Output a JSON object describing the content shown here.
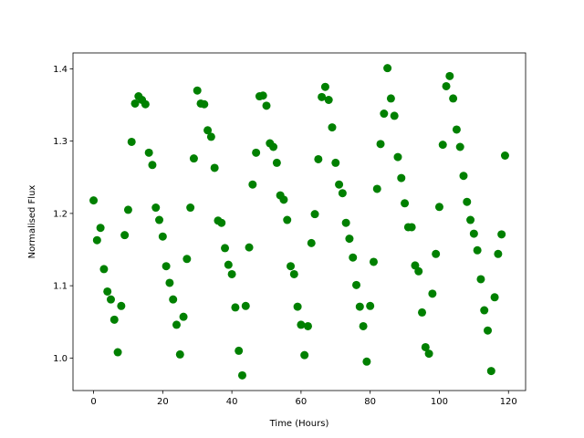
{
  "chart_data": {
    "type": "scatter",
    "xlabel": "Time (Hours)",
    "ylabel": "Normalised Flux",
    "color": "#008000",
    "x": [
      0,
      1,
      2,
      3,
      4,
      5,
      6,
      7,
      8,
      9,
      10,
      11,
      12,
      13,
      14,
      15,
      16,
      17,
      18,
      19,
      20,
      21,
      22,
      23,
      24,
      25,
      26,
      27,
      28,
      29,
      30,
      31,
      32,
      33,
      34,
      35,
      36,
      37,
      38,
      39,
      40,
      41,
      42,
      43,
      44,
      45,
      46,
      47,
      48,
      49,
      50,
      51,
      52,
      53,
      54,
      55,
      56,
      57,
      58,
      59,
      60,
      61,
      62,
      63,
      64,
      65,
      66,
      67,
      68,
      69,
      70,
      71,
      72,
      73,
      74,
      75,
      76,
      77,
      78,
      79,
      80,
      81,
      82,
      83,
      84,
      85,
      86,
      87,
      88,
      89,
      90,
      91,
      92,
      93,
      94,
      95,
      96,
      97,
      98,
      99,
      100,
      101,
      102,
      103,
      104,
      105,
      106,
      107,
      108,
      109,
      110,
      111,
      112,
      113,
      114,
      115,
      116,
      117,
      118,
      119
    ],
    "values": [
      1.218,
      1.163,
      1.18,
      1.123,
      1.092,
      1.081,
      1.053,
      1.008,
      1.072,
      1.17,
      1.205,
      1.299,
      1.352,
      1.362,
      1.357,
      1.351,
      1.284,
      1.267,
      1.208,
      1.191,
      1.168,
      1.127,
      1.104,
      1.081,
      1.046,
      1.005,
      1.057,
      1.137,
      1.208,
      1.276,
      1.37,
      1.352,
      1.351,
      1.315,
      1.306,
      1.263,
      1.19,
      1.187,
      1.152,
      1.129,
      1.116,
      1.07,
      1.01,
      0.976,
      1.072,
      1.153,
      1.24,
      1.284,
      1.362,
      1.363,
      1.349,
      1.297,
      1.292,
      1.27,
      1.225,
      1.219,
      1.191,
      1.127,
      1.116,
      1.071,
      1.046,
      1.004,
      1.044,
      1.159,
      1.199,
      1.275,
      1.361,
      1.375,
      1.357,
      1.319,
      1.27,
      1.24,
      1.228,
      1.187,
      1.165,
      1.139,
      1.101,
      1.071,
      1.044,
      0.995,
      1.072,
      1.133,
      1.234,
      1.296,
      1.338,
      1.401,
      1.359,
      1.335,
      1.278,
      1.249,
      1.214,
      1.181,
      1.181,
      1.128,
      1.12,
      1.063,
      1.015,
      1.006,
      1.089,
      1.144,
      1.209,
      1.295,
      1.376,
      1.39,
      1.359,
      1.316,
      1.292,
      1.252,
      1.216,
      1.191,
      1.172,
      1.149,
      1.109,
      1.066,
      1.038,
      0.982,
      1.084,
      1.144,
      1.171,
      1.28
    ],
    "xlim": [
      -5.95,
      124.95
    ],
    "xticks": [
      0,
      20,
      40,
      60,
      80,
      100,
      120
    ],
    "ylim": [
      0.955,
      1.422
    ],
    "yticks": [
      {
        "value": 1,
        "label": "1.0"
      },
      1.1,
      1.2,
      1.3,
      1.4
    ]
  }
}
